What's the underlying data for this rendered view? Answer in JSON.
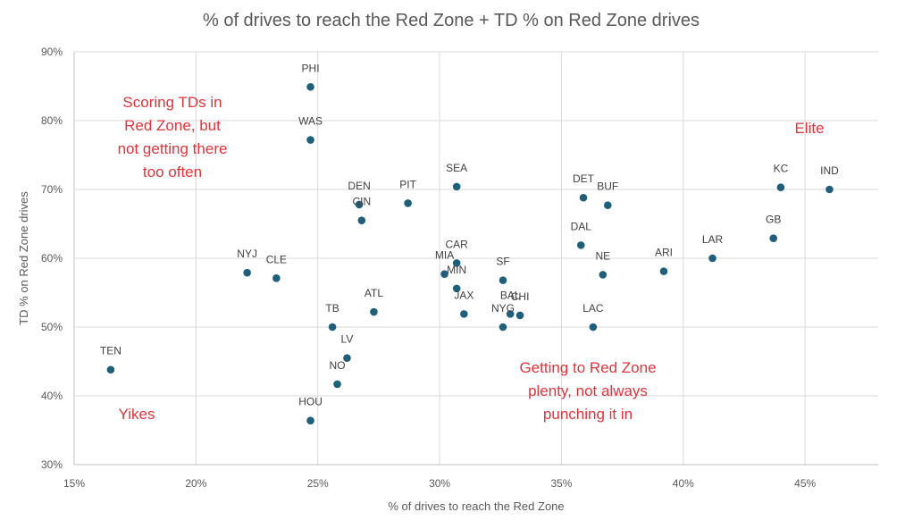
{
  "chart_data": {
    "type": "scatter",
    "title": "% of drives to reach the Red Zone + TD % on Red Zone drives",
    "xlabel": "% of drives to reach the Red Zone",
    "ylabel": "TD % on Red Zone drives",
    "xlim": [
      15,
      48
    ],
    "ylim": [
      30,
      90
    ],
    "x_ticks": [
      15,
      20,
      25,
      30,
      35,
      40,
      45
    ],
    "y_ticks": [
      30,
      40,
      50,
      60,
      70,
      80,
      90
    ],
    "x_tick_labels": [
      "15%",
      "20%",
      "25%",
      "30%",
      "35%",
      "40%",
      "45%"
    ],
    "y_tick_labels": [
      "30%",
      "40%",
      "50%",
      "60%",
      "70%",
      "80%",
      "90%"
    ],
    "grid": true,
    "marker_color": "#1f5f7a",
    "annotation_color": "#e0343a",
    "points": [
      {
        "team": "PHI",
        "x": 24.7,
        "y": 84.9
      },
      {
        "team": "WAS",
        "x": 24.7,
        "y": 77.2
      },
      {
        "team": "DEN",
        "x": 26.7,
        "y": 67.8
      },
      {
        "team": "CIN",
        "x": 26.8,
        "y": 65.5
      },
      {
        "team": "PIT",
        "x": 28.7,
        "y": 68.0
      },
      {
        "team": "SEA",
        "x": 30.7,
        "y": 70.4
      },
      {
        "team": "DET",
        "x": 35.9,
        "y": 68.8
      },
      {
        "team": "BUF",
        "x": 36.9,
        "y": 67.7
      },
      {
        "team": "KC",
        "x": 44.0,
        "y": 70.3
      },
      {
        "team": "IND",
        "x": 46.0,
        "y": 70.0
      },
      {
        "team": "GB",
        "x": 43.7,
        "y": 62.9
      },
      {
        "team": "LAR",
        "x": 41.2,
        "y": 60.0
      },
      {
        "team": "ARI",
        "x": 39.2,
        "y": 58.1
      },
      {
        "team": "DAL",
        "x": 35.8,
        "y": 61.9
      },
      {
        "team": "NE",
        "x": 36.7,
        "y": 57.6
      },
      {
        "team": "NYJ",
        "x": 22.1,
        "y": 57.9
      },
      {
        "team": "CLE",
        "x": 23.3,
        "y": 57.1
      },
      {
        "team": "CAR",
        "x": 30.7,
        "y": 59.3
      },
      {
        "team": "MIA",
        "x": 30.2,
        "y": 57.7
      },
      {
        "team": "MIN",
        "x": 30.7,
        "y": 55.6
      },
      {
        "team": "SF",
        "x": 32.6,
        "y": 56.8
      },
      {
        "team": "ATL",
        "x": 27.3,
        "y": 52.2
      },
      {
        "team": "JAX",
        "x": 31.0,
        "y": 51.9
      },
      {
        "team": "BAL",
        "x": 32.9,
        "y": 51.9
      },
      {
        "team": "CHI",
        "x": 33.3,
        "y": 51.7
      },
      {
        "team": "NYG",
        "x": 32.6,
        "y": 50.0
      },
      {
        "team": "LAC",
        "x": 36.3,
        "y": 50.0
      },
      {
        "team": "TB",
        "x": 25.6,
        "y": 50.0
      },
      {
        "team": "LV",
        "x": 26.2,
        "y": 45.5
      },
      {
        "team": "NO",
        "x": 25.8,
        "y": 41.7
      },
      {
        "team": "HOU",
        "x": 24.7,
        "y": 36.4
      },
      {
        "team": "TEN",
        "x": 16.5,
        "y": 43.8
      }
    ],
    "annotations": [
      {
        "name": "top-left",
        "lines": [
          "Scoring TDs in",
          "Red Zone, but",
          "not getting there",
          "too often"
        ]
      },
      {
        "name": "top-right",
        "lines": [
          "Elite"
        ]
      },
      {
        "name": "bottom-left",
        "lines": [
          "Yikes"
        ]
      },
      {
        "name": "bottom-right",
        "lines": [
          "Getting to Red Zone",
          "plenty, not always",
          "punching it in"
        ]
      }
    ]
  }
}
